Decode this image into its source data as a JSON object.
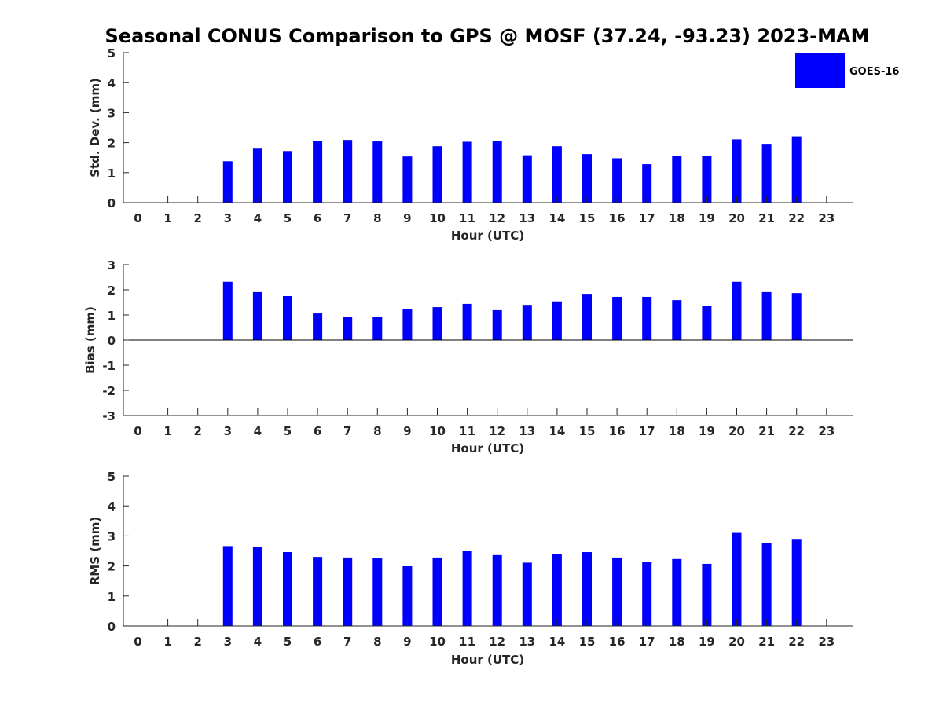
{
  "title": "Seasonal CONUS Comparison to GPS @ MOSF (37.24, -93.23) 2023-MAM",
  "colors": {
    "bar": "#0000ff",
    "axis": "#262626",
    "background": "#ffffff"
  },
  "legend": {
    "label": "GOES-16",
    "placement": "top-right"
  },
  "chart_data": [
    {
      "type": "bar",
      "title": "Seasonal CONUS Comparison to GPS @ MOSF (37.24, -93.23) 2023-MAM",
      "xlabel": "Hour (UTC)",
      "ylabel": "Std. Dev. (mm)",
      "ylim": [
        0,
        5
      ],
      "yticks": [
        "0",
        "1",
        "2",
        "3",
        "4",
        "5"
      ],
      "categories": [
        "0",
        "1",
        "2",
        "3",
        "4",
        "5",
        "6",
        "7",
        "8",
        "9",
        "10",
        "11",
        "12",
        "13",
        "14",
        "15",
        "16",
        "17",
        "18",
        "19",
        "20",
        "21",
        "22",
        "23"
      ],
      "series": [
        {
          "name": "GOES-16",
          "values": [
            null,
            null,
            null,
            1.38,
            1.8,
            1.72,
            2.06,
            2.09,
            2.04,
            1.54,
            1.88,
            2.03,
            2.06,
            1.58,
            1.88,
            1.62,
            1.48,
            1.28,
            1.57,
            1.57,
            2.11,
            1.96,
            2.21,
            null
          ]
        }
      ],
      "grid": false
    },
    {
      "type": "bar",
      "xlabel": "Hour (UTC)",
      "ylabel": "Bias (mm)",
      "ylim": [
        -3,
        3
      ],
      "yticks": [
        "-3",
        "-2",
        "-1",
        "0",
        "1",
        "2",
        "3"
      ],
      "categories": [
        "0",
        "1",
        "2",
        "3",
        "4",
        "5",
        "6",
        "7",
        "8",
        "9",
        "10",
        "11",
        "12",
        "13",
        "14",
        "15",
        "16",
        "17",
        "18",
        "19",
        "20",
        "21",
        "22",
        "23"
      ],
      "series": [
        {
          "name": "GOES-16",
          "values": [
            null,
            null,
            null,
            2.32,
            1.91,
            1.75,
            1.06,
            0.91,
            0.93,
            1.24,
            1.31,
            1.44,
            1.19,
            1.4,
            1.54,
            1.84,
            1.72,
            1.72,
            1.59,
            1.37,
            2.32,
            1.91,
            1.87,
            null
          ]
        }
      ],
      "grid": false
    },
    {
      "type": "bar",
      "xlabel": "Hour (UTC)",
      "ylabel": "RMS (mm)",
      "ylim": [
        0,
        5
      ],
      "yticks": [
        "0",
        "1",
        "2",
        "3",
        "4",
        "5"
      ],
      "categories": [
        "0",
        "1",
        "2",
        "3",
        "4",
        "5",
        "6",
        "7",
        "8",
        "9",
        "10",
        "11",
        "12",
        "13",
        "14",
        "15",
        "16",
        "17",
        "18",
        "19",
        "20",
        "21",
        "22",
        "23"
      ],
      "series": [
        {
          "name": "GOES-16",
          "values": [
            null,
            null,
            null,
            2.66,
            2.62,
            2.46,
            2.3,
            2.28,
            2.25,
            1.99,
            2.28,
            2.51,
            2.36,
            2.11,
            2.4,
            2.46,
            2.28,
            2.13,
            2.23,
            2.07,
            3.1,
            2.75,
            2.9,
            null
          ]
        }
      ],
      "grid": false
    }
  ]
}
